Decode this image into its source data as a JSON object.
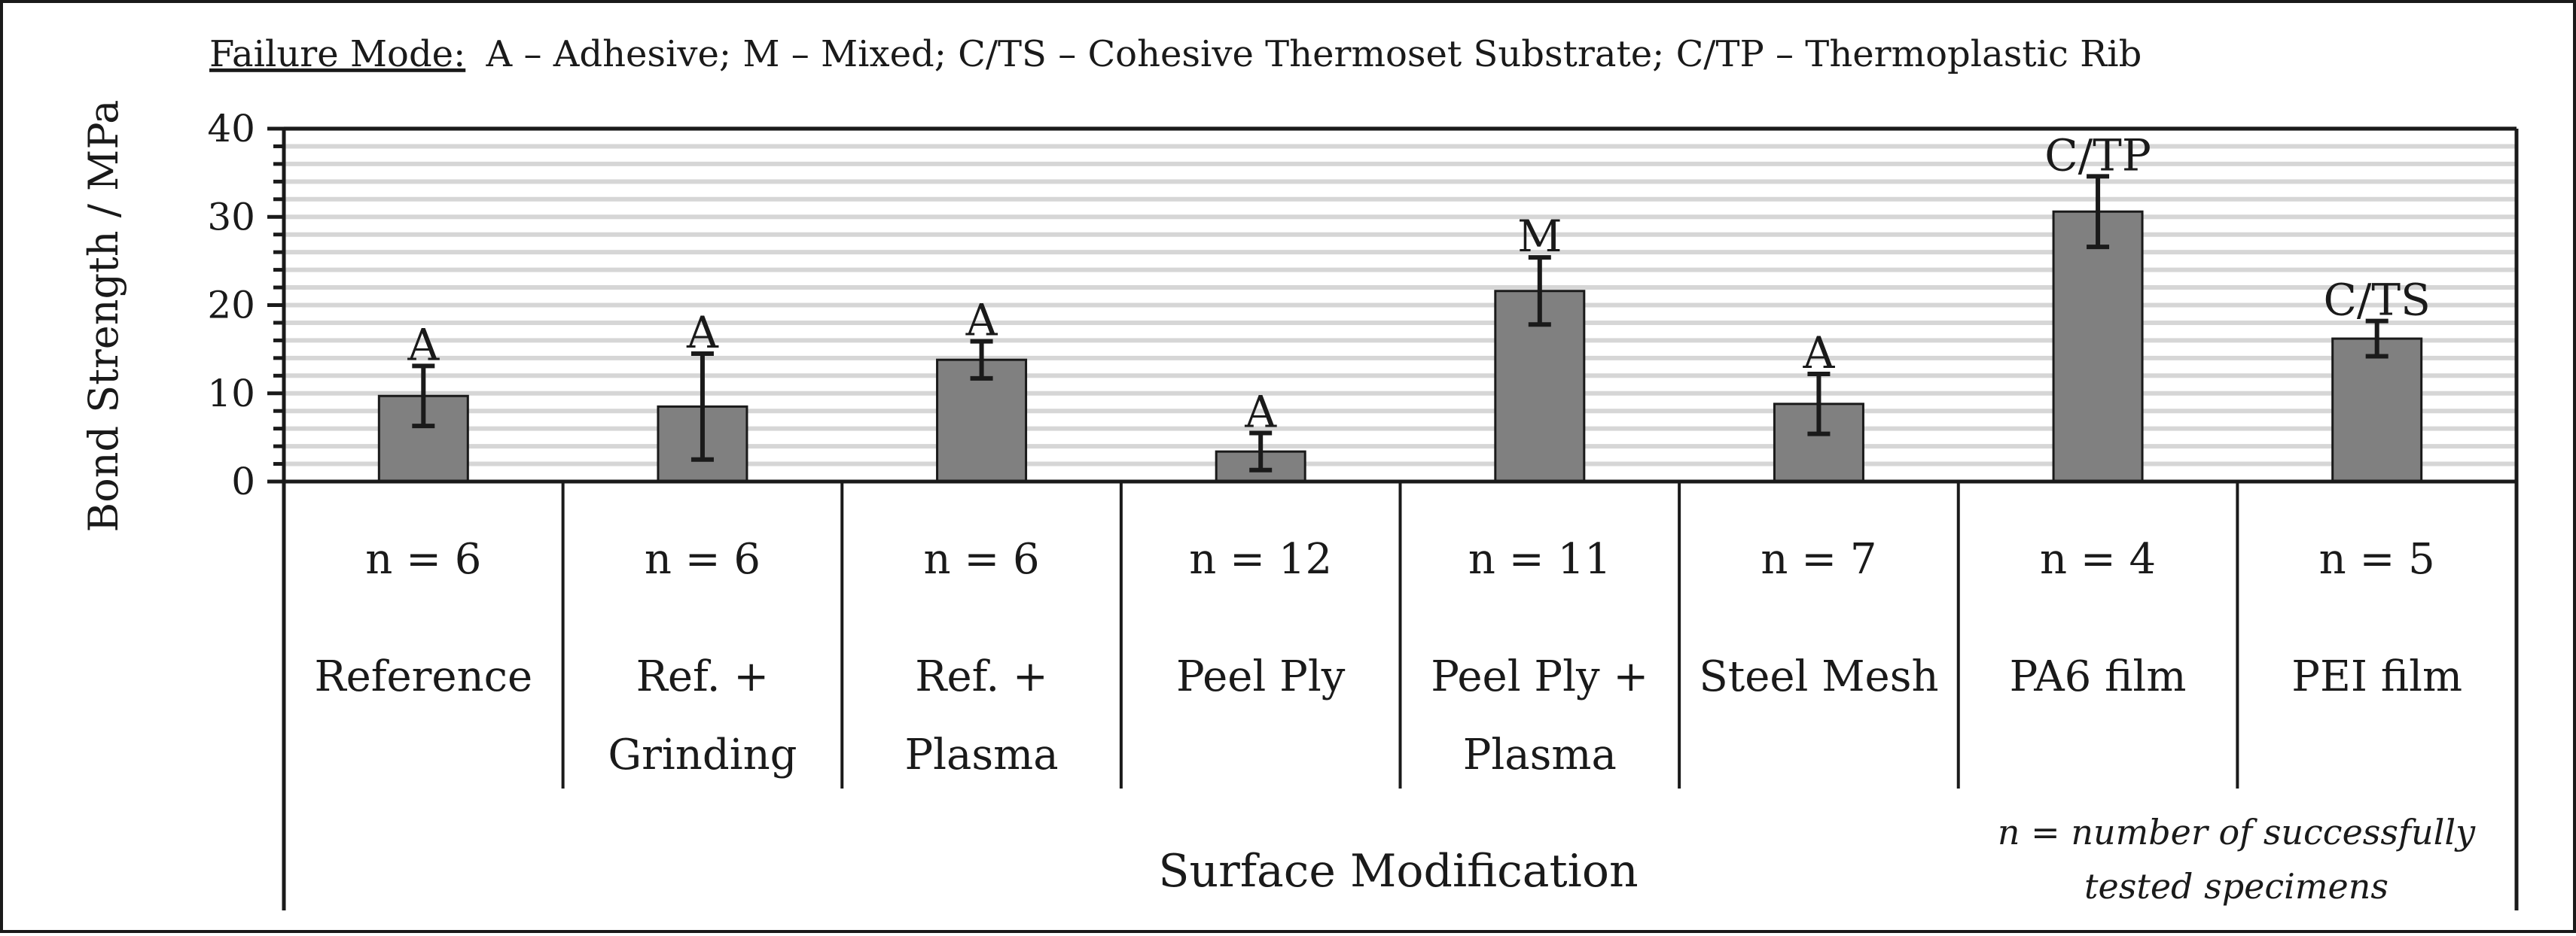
{
  "chart_data": {
    "type": "bar",
    "legend": {
      "prefix": "Failure Mode:",
      "text": "A – Adhesive; M – Mixed; C/TS – Cohesive Thermoset Substrate; C/TP – Thermoplastic Rib"
    },
    "ylabel": "Bond Strength / MPa",
    "xlabel": "Surface Modification",
    "ylim": [
      0,
      40
    ],
    "yticks": [
      "0",
      "10",
      "20",
      "30",
      "40"
    ],
    "grid": true,
    "categories": [
      [
        "Reference"
      ],
      [
        "Ref. +",
        "Grinding"
      ],
      [
        "Ref. +",
        "Plasma"
      ],
      [
        "Peel Ply"
      ],
      [
        "Peel Ply +",
        "Plasma"
      ],
      [
        "Steel Mesh"
      ],
      [
        "PA6 film"
      ],
      [
        "PEI film"
      ]
    ],
    "values": [
      9.7,
      8.5,
      13.8,
      3.4,
      21.6,
      8.8,
      30.6,
      16.2
    ],
    "errors": [
      3.4,
      6.0,
      2.1,
      2.1,
      3.8,
      3.4,
      4.0,
      2.0
    ],
    "failure_modes": [
      "A",
      "A",
      "A",
      "A",
      "M",
      "A",
      "C/TP",
      "C/TS"
    ],
    "counts": [
      "n = 6",
      "n = 6",
      "n = 6",
      "n = 12",
      "n = 11",
      "n = 7",
      "n = 4",
      "n = 5"
    ],
    "note": [
      "n = number of successfully",
      "tested specimens"
    ]
  }
}
